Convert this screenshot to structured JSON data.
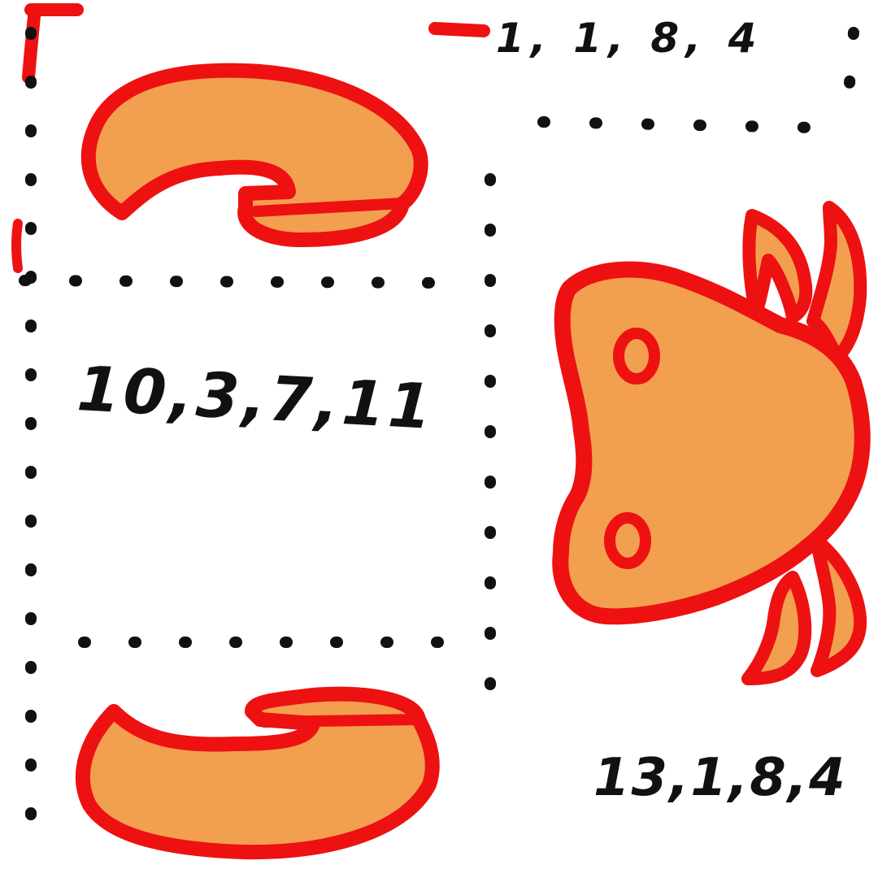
{
  "colors": {
    "outline": "#ee1111",
    "fill": "#f2a050",
    "ink": "#111111",
    "background": "#ffffff"
  },
  "labels": {
    "top_right": "1, 1, 8, 4",
    "left_middle": "10,3,7,11",
    "bottom_right": "13,1,8,4"
  },
  "shapes": {
    "top_claw": "claw-shape",
    "bottom_claw": "claw-shape",
    "crab_body": "crab-shape"
  }
}
